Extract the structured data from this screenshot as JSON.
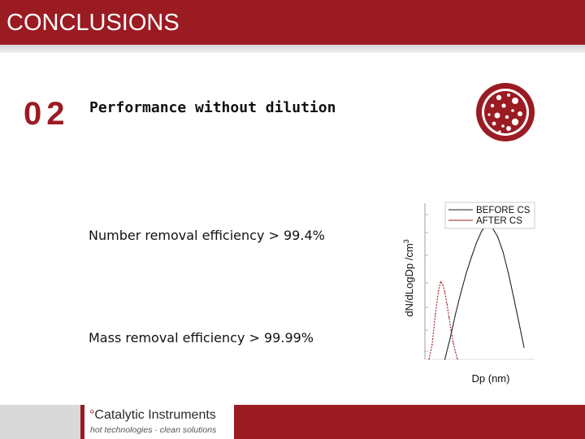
{
  "header": {
    "title": "CONCLUSIONS"
  },
  "section": {
    "number": "02",
    "title": "Performance without dilution"
  },
  "bullets": [
    "Number removal efficiency > 99.4%",
    "Mass removal efficiency > 99.99%"
  ],
  "chart_data": {
    "type": "line",
    "xlabel": "Dp (nm)",
    "ylabel": "dN/dLogDp /cm3",
    "x_scale": "log",
    "legend": "top-right",
    "series": [
      {
        "name": "BEFORE CS",
        "color": "#222222",
        "x": [
          0.15,
          0.2,
          0.25,
          0.3,
          0.35,
          0.4,
          0.45,
          0.5,
          0.55,
          0.6,
          0.65,
          0.7,
          0.75,
          0.8,
          0.85,
          0.9
        ],
        "y": [
          0.0,
          0.14,
          0.3,
          0.44,
          0.57,
          0.68,
          0.78,
          0.86,
          0.9,
          0.88,
          0.82,
          0.72,
          0.58,
          0.42,
          0.25,
          0.08
        ]
      },
      {
        "name": "AFTER CS",
        "color": "#9b1b22",
        "x": [
          0.0,
          0.03,
          0.06,
          0.09,
          0.11,
          0.13,
          0.15,
          0.17,
          0.19,
          0.21,
          0.23,
          0.25,
          0.27
        ],
        "y": [
          0.0,
          0.1,
          0.3,
          0.46,
          0.52,
          0.5,
          0.45,
          0.37,
          0.28,
          0.19,
          0.11,
          0.05,
          0.0
        ]
      }
    ]
  },
  "logo": {
    "mark": "°",
    "name": "Catalytic Instruments",
    "tagline": "hot technologies · clean solutions"
  },
  "colors": {
    "brand": "#9b1b22"
  },
  "icons": {
    "section_icon": "particle-dots-icon"
  }
}
